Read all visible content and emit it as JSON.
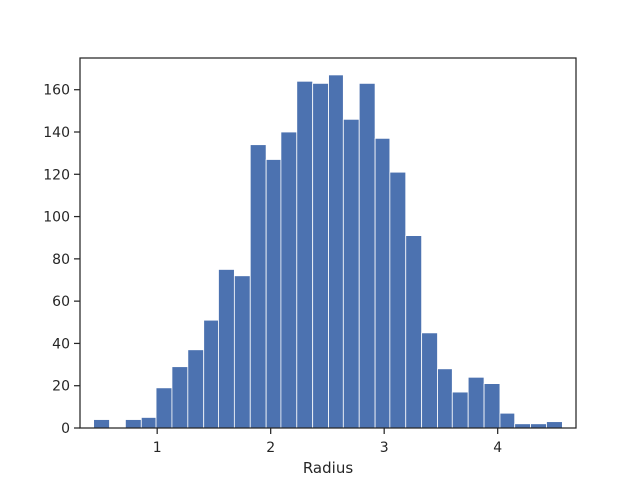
{
  "chart_data": {
    "type": "bar",
    "title": "",
    "xlabel": "Radius",
    "ylabel": "",
    "xlim": [
      0.32,
      4.69
    ],
    "ylim": [
      0,
      175
    ],
    "xticks": [
      1,
      2,
      3,
      4
    ],
    "yticks": [
      0,
      20,
      40,
      60,
      80,
      100,
      120,
      140,
      160
    ],
    "grid": false,
    "bar_color": "#4c72b0",
    "bins": [
      {
        "x0": 0.44,
        "x1": 0.58,
        "count": 4
      },
      {
        "x0": 0.58,
        "x1": 0.72,
        "count": 0
      },
      {
        "x0": 0.72,
        "x1": 0.86,
        "count": 4
      },
      {
        "x0": 0.86,
        "x1": 0.99,
        "count": 5
      },
      {
        "x0": 0.99,
        "x1": 1.13,
        "count": 19
      },
      {
        "x0": 1.13,
        "x1": 1.27,
        "count": 29
      },
      {
        "x0": 1.27,
        "x1": 1.41,
        "count": 37
      },
      {
        "x0": 1.41,
        "x1": 1.54,
        "count": 51
      },
      {
        "x0": 1.54,
        "x1": 1.68,
        "count": 75
      },
      {
        "x0": 1.68,
        "x1": 1.82,
        "count": 72
      },
      {
        "x0": 1.82,
        "x1": 1.96,
        "count": 134
      },
      {
        "x0": 1.96,
        "x1": 2.09,
        "count": 127
      },
      {
        "x0": 2.09,
        "x1": 2.23,
        "count": 140
      },
      {
        "x0": 2.23,
        "x1": 2.37,
        "count": 164
      },
      {
        "x0": 2.37,
        "x1": 2.51,
        "count": 163
      },
      {
        "x0": 2.51,
        "x1": 2.64,
        "count": 167
      },
      {
        "x0": 2.64,
        "x1": 2.78,
        "count": 146
      },
      {
        "x0": 2.78,
        "x1": 2.92,
        "count": 163
      },
      {
        "x0": 2.92,
        "x1": 3.05,
        "count": 137
      },
      {
        "x0": 3.05,
        "x1": 3.19,
        "count": 121
      },
      {
        "x0": 3.19,
        "x1": 3.33,
        "count": 91
      },
      {
        "x0": 3.33,
        "x1": 3.47,
        "count": 45
      },
      {
        "x0": 3.47,
        "x1": 3.6,
        "count": 28
      },
      {
        "x0": 3.6,
        "x1": 3.74,
        "count": 17
      },
      {
        "x0": 3.74,
        "x1": 3.88,
        "count": 24
      },
      {
        "x0": 3.88,
        "x1": 4.02,
        "count": 21
      },
      {
        "x0": 4.02,
        "x1": 4.15,
        "count": 7
      },
      {
        "x0": 4.15,
        "x1": 4.29,
        "count": 2
      },
      {
        "x0": 4.29,
        "x1": 4.43,
        "count": 2
      },
      {
        "x0": 4.43,
        "x1": 4.57,
        "count": 3
      }
    ]
  }
}
